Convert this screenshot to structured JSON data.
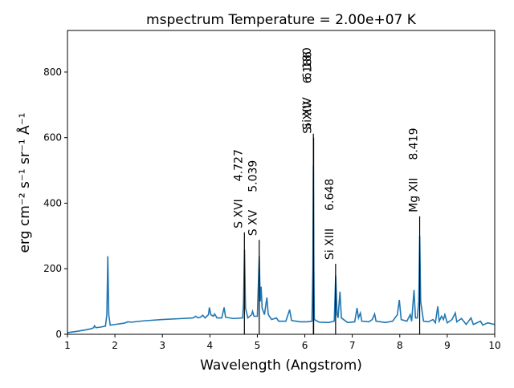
{
  "chart_data": {
    "type": "line",
    "title": "mspectrum Temperature =   2.00e+07 K",
    "x_label": "Wavelength (Angstrom)",
    "y_label": "erg cm⁻² s⁻¹ sr⁻¹ Å⁻¹",
    "xlim": [
      1,
      10
    ],
    "ylim": [
      0,
      927
    ],
    "xticks": [
      1,
      2,
      3,
      4,
      5,
      6,
      7,
      8,
      9,
      10
    ],
    "yticks": [
      0,
      200,
      400,
      600,
      800
    ],
    "series": [
      {
        "color": "#1f77b4",
        "x": [
          1.0,
          1.2,
          1.4,
          1.5,
          1.55,
          1.57,
          1.6,
          1.7,
          1.8,
          1.83,
          1.85,
          1.87,
          1.9,
          2.0,
          2.2,
          2.27,
          2.35,
          2.6,
          3.0,
          3.4,
          3.65,
          3.7,
          3.75,
          3.8,
          3.85,
          3.9,
          3.97,
          3.99,
          4.02,
          4.07,
          4.1,
          4.15,
          4.25,
          4.3,
          4.33,
          4.5,
          4.69,
          4.71,
          4.73,
          4.75,
          4.8,
          4.88,
          4.9,
          4.93,
          5.0,
          5.04,
          5.06,
          5.08,
          5.1,
          5.15,
          5.2,
          5.23,
          5.3,
          5.4,
          5.45,
          5.6,
          5.68,
          5.72,
          5.9,
          6.05,
          6.15,
          6.17,
          6.18,
          6.19,
          6.2,
          6.3,
          6.5,
          6.62,
          6.65,
          6.68,
          6.7,
          6.74,
          6.77,
          6.9,
          7.05,
          7.1,
          7.13,
          7.17,
          7.2,
          7.35,
          7.42,
          7.47,
          7.5,
          7.7,
          7.85,
          7.95,
          7.99,
          8.03,
          8.15,
          8.22,
          8.25,
          8.3,
          8.33,
          8.37,
          8.4,
          8.42,
          8.44,
          8.5,
          8.6,
          8.7,
          8.75,
          8.8,
          8.83,
          8.88,
          8.92,
          8.95,
          9.0,
          9.1,
          9.17,
          9.2,
          9.3,
          9.4,
          9.5,
          9.55,
          9.7,
          9.75,
          9.85,
          10.0
        ],
        "values": [
          5,
          9,
          14,
          17,
          20,
          26,
          20,
          22,
          25,
          60,
          238,
          60,
          28,
          30,
          34,
          38,
          37,
          41,
          45,
          48,
          50,
          55,
          50,
          52,
          58,
          50,
          60,
          82,
          60,
          55,
          62,
          50,
          50,
          82,
          52,
          48,
          50,
          100,
          258,
          80,
          50,
          60,
          70,
          55,
          55,
          240,
          100,
          145,
          80,
          60,
          112,
          60,
          45,
          50,
          40,
          40,
          75,
          42,
          38,
          38,
          40,
          200,
          515,
          200,
          45,
          37,
          36,
          40,
          180,
          60,
          50,
          130,
          50,
          36,
          38,
          80,
          50,
          65,
          40,
          38,
          45,
          62,
          40,
          36,
          40,
          60,
          105,
          45,
          40,
          60,
          40,
          135,
          50,
          50,
          100,
          300,
          100,
          40,
          38,
          45,
          35,
          85,
          40,
          55,
          45,
          60,
          35,
          45,
          65,
          38,
          48,
          30,
          50,
          30,
          40,
          28,
          35,
          30
        ]
      }
    ],
    "lines": {
      "color": "#000000",
      "ions": [
        "S XVI",
        "S XV",
        "Si XIV",
        "Si XIV",
        "Si XIII",
        "Mg XII"
      ],
      "wavelengths": [
        4.727,
        5.039,
        6.18,
        6.186,
        6.648,
        8.419
      ],
      "wavelength_labels": [
        "4.727",
        "5.039",
        "6.180",
        "6.186",
        "6.648",
        "8.419"
      ],
      "heights": [
        311,
        288,
        612,
        600,
        215,
        360
      ]
    }
  }
}
